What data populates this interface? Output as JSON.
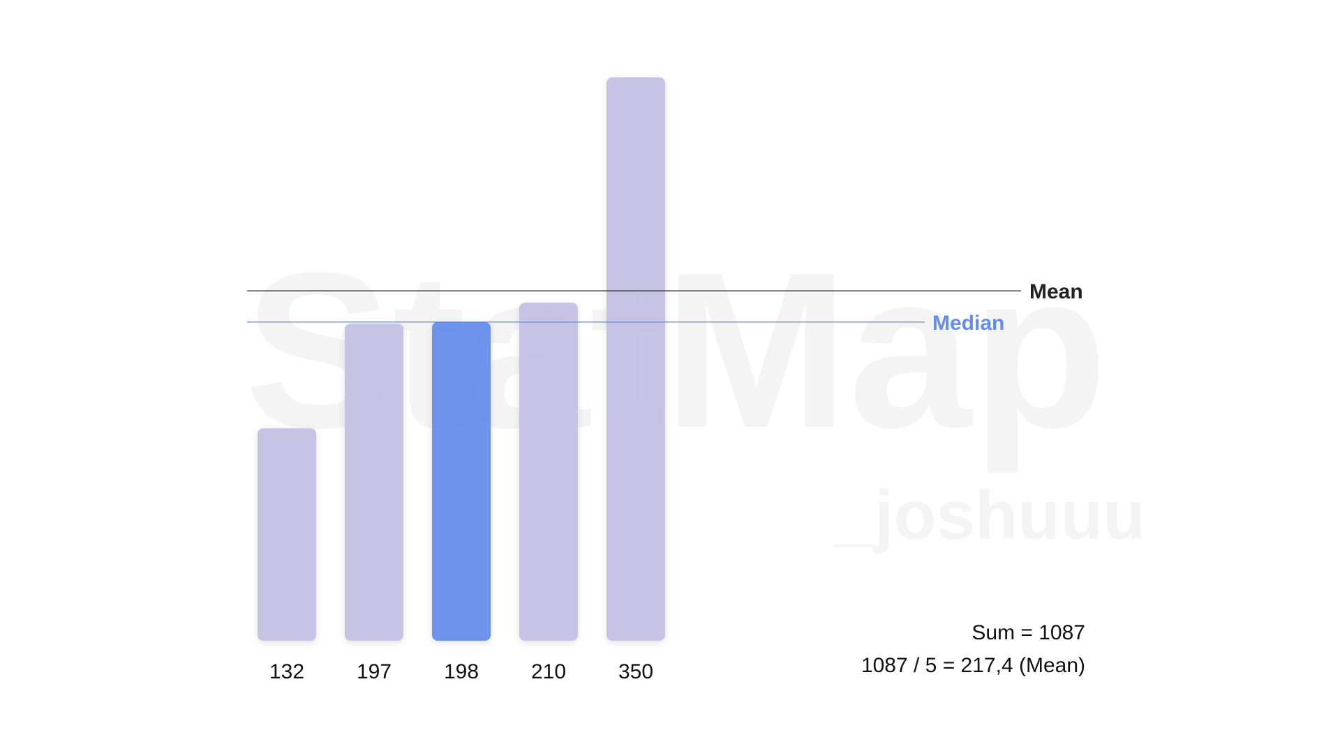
{
  "chart_data": {
    "type": "bar",
    "values": [
      132,
      197,
      198,
      210,
      350
    ],
    "colors": [
      "#c4bfe3",
      "#c4bfe3",
      "#638ced",
      "#c4bfe3",
      "#c4bfe3"
    ],
    "ylim": [
      0,
      350
    ],
    "reference_lines": [
      {
        "label": "Mean",
        "value": 217.4,
        "color": "#222222"
      },
      {
        "label": "Median",
        "value": 198,
        "color": "#638ced"
      }
    ],
    "annotations": [
      "Sum = 1087",
      "1087 / 5 = 217,4 (Mean)"
    ],
    "watermark": {
      "title": "StatMap",
      "author": "_joshuuu"
    }
  }
}
